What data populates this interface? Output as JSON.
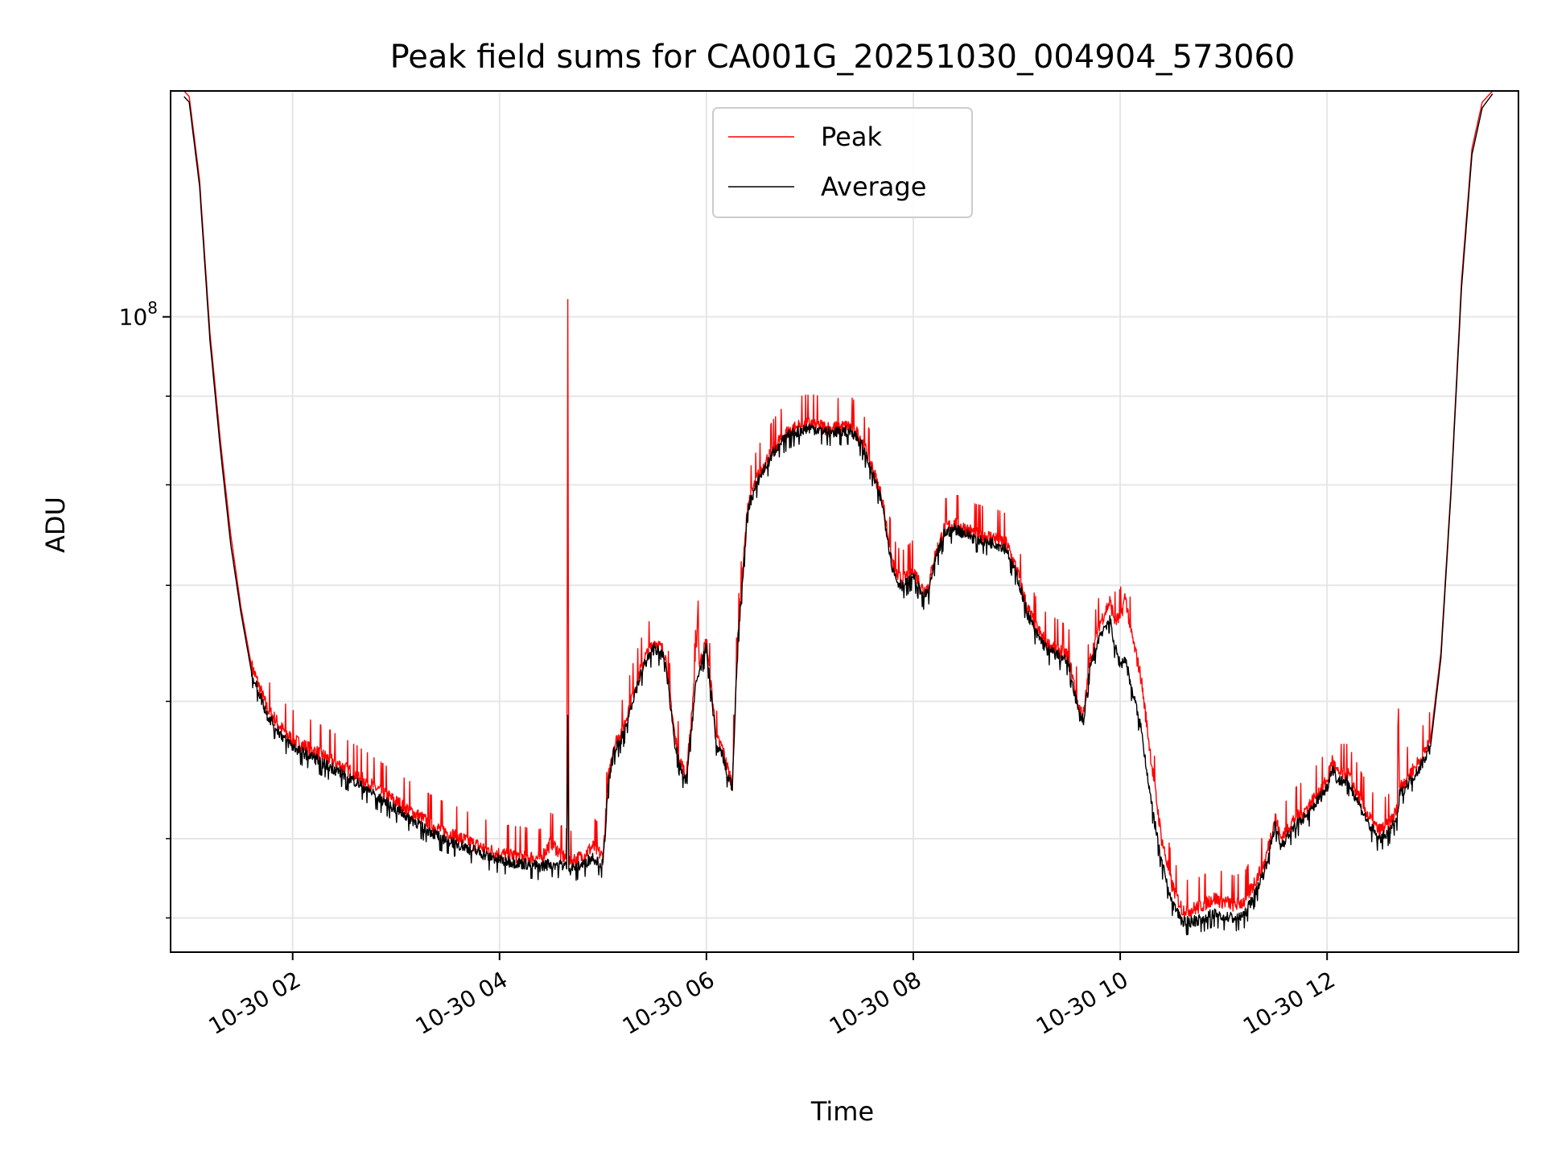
{
  "chart_data": {
    "type": "line",
    "title": "Peak field sums for CA001G_20251030_004904_573060",
    "xlabel": "Time",
    "ylabel": "ADU",
    "yscale": "log",
    "grid": true,
    "legend_position": "top-center",
    "x_unit": "hours since 2025-10-30 00:00",
    "xlim": [
      0.82,
      13.85
    ],
    "ylim": [
      43000000.0,
      135000000.0
    ],
    "x_ticks": [
      {
        "value": 2,
        "label": "10-30 02"
      },
      {
        "value": 4,
        "label": "10-30 04"
      },
      {
        "value": 6,
        "label": "10-30 06"
      },
      {
        "value": 8,
        "label": "10-30 08"
      },
      {
        "value": 10,
        "label": "10-30 10"
      },
      {
        "value": 12,
        "label": "10-30 12"
      }
    ],
    "y_major_ticks": [
      {
        "value": 100000000,
        "base": "10",
        "exp": "8"
      }
    ],
    "y_minor_ticks": [
      45000000,
      50000000,
      60000000,
      70000000,
      80000000,
      90000000
    ],
    "series": [
      {
        "name": "Peak",
        "color": "#ff0000",
        "x": [
          0.95,
          1.0,
          1.1,
          1.2,
          1.3,
          1.4,
          1.5,
          1.6,
          1.75,
          1.9,
          2.0,
          2.3,
          2.6,
          3.0,
          3.4,
          3.8,
          4.0,
          4.4,
          4.5,
          4.6,
          4.65,
          4.66,
          4.67,
          4.68,
          4.7,
          4.8,
          4.9,
          5.0,
          5.05,
          5.1,
          5.2,
          5.3,
          5.4,
          5.5,
          5.6,
          5.7,
          5.75,
          5.8,
          5.85,
          5.9,
          5.92,
          5.93,
          5.95,
          6.0,
          6.1,
          6.15,
          6.2,
          6.25,
          6.3,
          6.4,
          6.5,
          6.6,
          6.7,
          6.8,
          6.9,
          7.0,
          7.2,
          7.4,
          7.5,
          7.6,
          7.7,
          7.8,
          7.85,
          7.9,
          8.0,
          8.1,
          8.15,
          8.2,
          8.3,
          8.4,
          8.5,
          8.6,
          8.8,
          8.9,
          9.0,
          9.1,
          9.2,
          9.3,
          9.4,
          9.5,
          9.6,
          9.65,
          9.7,
          9.8,
          9.9,
          9.95,
          10.0,
          10.05,
          10.1,
          10.2,
          10.3,
          10.4,
          10.5,
          10.6,
          10.7,
          10.8,
          10.9,
          11.0,
          11.1,
          11.2,
          11.3,
          11.4,
          11.5,
          11.55,
          11.6,
          11.7,
          11.8,
          11.9,
          12.0,
          12.05,
          12.1,
          12.2,
          12.3,
          12.4,
          12.5,
          12.6,
          12.68,
          12.69,
          12.7,
          12.8,
          12.9,
          13.0,
          13.1,
          13.2,
          13.3,
          13.4,
          13.5,
          13.6
        ],
        "values": [
          135000000,
          134000000,
          120000000,
          98000000,
          85000000,
          75000000,
          68000000,
          63000000,
          59500000,
          57800000,
          57000000,
          55800000,
          54500000,
          52500000,
          50700000,
          49500000,
          49000000,
          48700000,
          49800000,
          48900000,
          48700000,
          102000000,
          48700000,
          48500000,
          48600000,
          48800000,
          49500000,
          48800000,
          54000000,
          56500000,
          58000000,
          61000000,
          63500000,
          65000000,
          64000000,
          57000000,
          55500000,
          54200000,
          58000000,
          64000000,
          68500000,
          63000000,
          63500000,
          65000000,
          57000000,
          56500000,
          55000000,
          53800000,
          65000000,
          78000000,
          81000000,
          83000000,
          84800000,
          86000000,
          86500000,
          86800000,
          86200000,
          86500000,
          85000000,
          82000000,
          78500000,
          72000000,
          70800000,
          70500000,
          71500000,
          69500000,
          70000000,
          72500000,
          75500000,
          76000000,
          75500000,
          75000000,
          74500000,
          74000000,
          71500000,
          68000000,
          66000000,
          64700000,
          64300000,
          63700000,
          59500000,
          59000000,
          63000000,
          66500000,
          68500000,
          66800000,
          67000000,
          69000000,
          66000000,
          62000000,
          55500000,
          50000000,
          47000000,
          45500000,
          45500000,
          45800000,
          46200000,
          46000000,
          45800000,
          46000000,
          47200000,
          48500000,
          51500000,
          50000000,
          50500000,
          51500000,
          52000000,
          53000000,
          54000000,
          55500000,
          54500000,
          54500000,
          53000000,
          51500000,
          50500000,
          51000000,
          52000000,
          60000000,
          53500000,
          54500000,
          55500000,
          57000000,
          64000000,
          80000000,
          105000000,
          125000000,
          133000000,
          135000000
        ]
      },
      {
        "name": "Average",
        "color": "#000000",
        "x": [
          0.95,
          1.0,
          1.1,
          1.2,
          1.3,
          1.4,
          1.5,
          1.6,
          1.75,
          1.9,
          2.0,
          2.3,
          2.6,
          3.0,
          3.4,
          3.8,
          4.0,
          4.4,
          4.5,
          4.6,
          4.65,
          4.66,
          4.67,
          4.68,
          4.7,
          4.8,
          4.9,
          5.0,
          5.05,
          5.1,
          5.2,
          5.3,
          5.4,
          5.5,
          5.6,
          5.7,
          5.75,
          5.8,
          5.85,
          5.9,
          5.92,
          5.93,
          5.95,
          6.0,
          6.1,
          6.15,
          6.2,
          6.25,
          6.3,
          6.4,
          6.5,
          6.6,
          6.7,
          6.8,
          6.9,
          7.0,
          7.2,
          7.4,
          7.5,
          7.6,
          7.7,
          7.8,
          7.85,
          7.9,
          8.0,
          8.1,
          8.15,
          8.2,
          8.3,
          8.4,
          8.5,
          8.6,
          8.8,
          8.9,
          9.0,
          9.1,
          9.2,
          9.3,
          9.4,
          9.5,
          9.6,
          9.65,
          9.7,
          9.8,
          9.9,
          9.95,
          10.0,
          10.05,
          10.1,
          10.2,
          10.3,
          10.4,
          10.5,
          10.6,
          10.7,
          10.8,
          10.9,
          11.0,
          11.1,
          11.2,
          11.3,
          11.4,
          11.5,
          11.55,
          11.6,
          11.7,
          11.8,
          11.9,
          12.0,
          12.05,
          12.1,
          12.2,
          12.3,
          12.4,
          12.5,
          12.6,
          12.68,
          12.69,
          12.7,
          12.8,
          12.9,
          13.0,
          13.1,
          13.2,
          13.3,
          13.4,
          13.5,
          13.6
        ],
        "values": [
          134000000,
          133000000,
          119000000,
          97000000,
          84000000,
          74000000,
          67500000,
          62500000,
          59000000,
          57300000,
          56500000,
          55300000,
          54000000,
          52000000,
          50200000,
          49100000,
          48600000,
          48200000,
          48400000,
          48300000,
          48200000,
          59000000,
          48200000,
          48000000,
          48100000,
          48300000,
          48800000,
          48300000,
          53500000,
          56000000,
          57500000,
          60500000,
          63000000,
          64500000,
          63500000,
          56500000,
          55000000,
          53800000,
          57500000,
          61500000,
          62000000,
          62500000,
          63000000,
          64500000,
          56500000,
          56000000,
          54500000,
          53600000,
          64500000,
          77500000,
          80500000,
          82500000,
          84500000,
          85500000,
          86000000,
          86300000,
          85800000,
          86000000,
          84500000,
          81500000,
          78000000,
          71500000,
          70300000,
          70000000,
          71000000,
          69000000,
          69500000,
          72000000,
          75000000,
          75500000,
          75000000,
          74500000,
          74000000,
          73500000,
          71000000,
          67500000,
          65500000,
          64200000,
          63800000,
          63200000,
          59000000,
          58500000,
          62500000,
          65500000,
          67000000,
          64500000,
          63000000,
          63500000,
          61500000,
          58000000,
          52500000,
          48500000,
          46000000,
          44800000,
          44800000,
          45000000,
          45300000,
          45100000,
          45000000,
          45200000,
          46500000,
          48000000,
          51000000,
          49500000,
          50000000,
          51000000,
          51500000,
          52500000,
          53500000,
          55000000,
          54000000,
          54000000,
          52500000,
          51000000,
          50000000,
          50500000,
          51500000,
          52000000,
          53000000,
          54000000,
          55000000,
          56500000,
          63500000,
          79500000,
          104000000,
          124000000,
          132000000,
          134500000
        ]
      }
    ]
  }
}
